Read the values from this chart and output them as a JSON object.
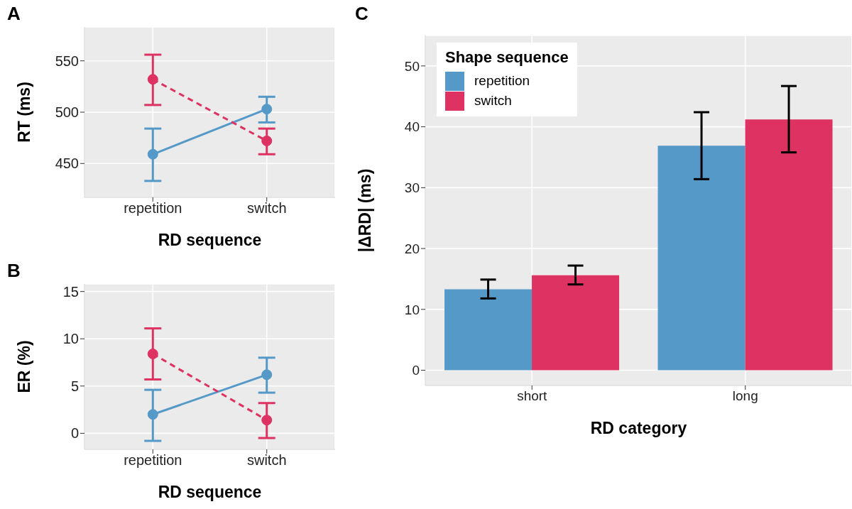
{
  "chart_data": [
    {
      "type": "line",
      "title": "A",
      "xlabel": "RD sequence",
      "ylabel": "RT (ms)",
      "categories": [
        "repetition",
        "switch"
      ],
      "ylim": [
        417,
        583
      ],
      "yticks": [
        450,
        500,
        550
      ],
      "grid": true,
      "marker": "circle",
      "series": [
        {
          "color": "#5599c8",
          "line_style": "solid",
          "values": [
            459,
            503
          ],
          "errors": [
            [
              433,
              484
            ],
            [
              490,
              515
            ]
          ]
        },
        {
          "color": "#dd3262",
          "line_style": "dashed",
          "values": [
            532,
            472
          ],
          "errors": [
            [
              507,
              556
            ],
            [
              459,
              484
            ]
          ]
        }
      ]
    },
    {
      "type": "line",
      "title": "B",
      "xlabel": "RD sequence",
      "ylabel": "ER (%)",
      "categories": [
        "repetition",
        "switch"
      ],
      "ylim": [
        -1.7,
        15.8
      ],
      "yticks": [
        0,
        5,
        10,
        15
      ],
      "grid": true,
      "marker": "circle",
      "series": [
        {
          "color": "#5599c8",
          "line_style": "solid",
          "values": [
            2.0,
            6.2
          ],
          "errors": [
            [
              -0.8,
              4.6
            ],
            [
              4.3,
              8.0
            ]
          ]
        },
        {
          "color": "#dd3262",
          "line_style": "dashed",
          "values": [
            8.4,
            1.4
          ],
          "errors": [
            [
              5.7,
              11.1
            ],
            [
              -0.5,
              3.2
            ]
          ]
        }
      ]
    },
    {
      "type": "bar",
      "title": "C",
      "xlabel": "RD category",
      "ylabel": "|ΔRD| (ms)",
      "legend_title": "Shape sequence",
      "legend": "top left",
      "categories": [
        "short",
        "long"
      ],
      "ylim": [
        -2.5,
        55
      ],
      "yticks": [
        0,
        10,
        20,
        30,
        40,
        50
      ],
      "grid": true,
      "series": [
        {
          "name": "repetition",
          "color": "#5599c8",
          "values": [
            13.3,
            36.9
          ],
          "errors": [
            [
              11.8,
              14.9
            ],
            [
              31.4,
              42.4
            ]
          ]
        },
        {
          "name": "switch",
          "color": "#dd3262",
          "values": [
            15.6,
            41.2
          ],
          "errors": [
            [
              14.1,
              17.2
            ],
            [
              35.8,
              46.7
            ]
          ]
        }
      ]
    }
  ]
}
